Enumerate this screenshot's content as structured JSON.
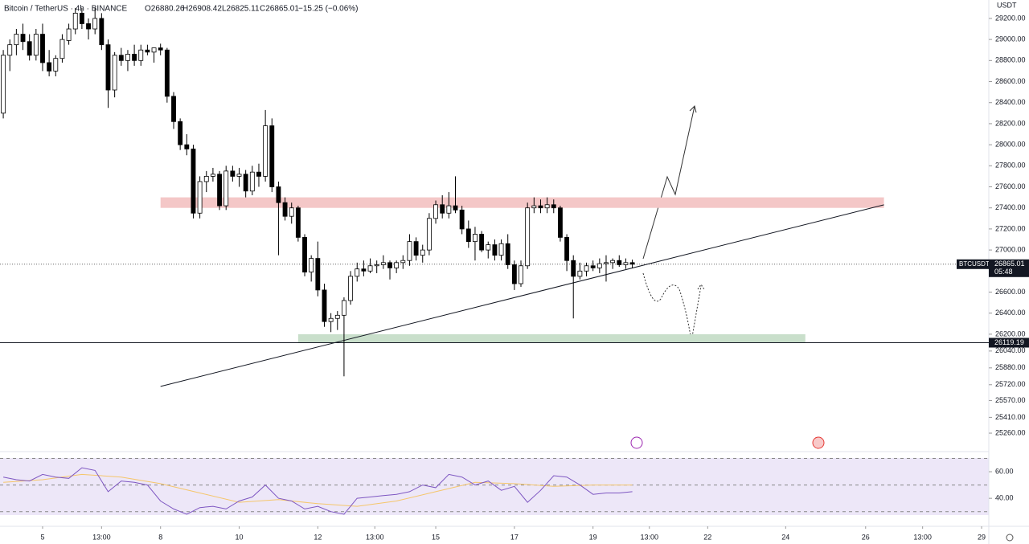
{
  "chart_data": {
    "type": "candlestick",
    "header": {
      "symbol": "Bitcoin / TetherUS · 4h · BINANCE",
      "open": "O26880.26",
      "high": "H26908.42",
      "low": "L26825.11",
      "close": "C26865.01",
      "change": "−15.25 (−0.06%)"
    },
    "currency": "USDT",
    "xlim": [
      -6.5,
      144.4
    ],
    "ylim": [
      25100,
      29375
    ],
    "xticks": [
      {
        "value": 0,
        "label": "5"
      },
      {
        "value": 9,
        "label": "13:00"
      },
      {
        "value": 18,
        "label": "8"
      },
      {
        "value": 30,
        "label": "10"
      },
      {
        "value": 42,
        "label": "12"
      },
      {
        "value": 50.7,
        "label": "13:00"
      },
      {
        "value": 60,
        "label": "15"
      },
      {
        "value": 72,
        "label": "17"
      },
      {
        "value": 84,
        "label": "19"
      },
      {
        "value": 92.6,
        "label": "13:00"
      },
      {
        "value": 101.5,
        "label": "22"
      },
      {
        "value": 113.4,
        "label": "24"
      },
      {
        "value": 125.6,
        "label": "26"
      },
      {
        "value": 134.3,
        "label": "13:00"
      },
      {
        "value": 143.3,
        "label": "29"
      }
    ],
    "yticks": [
      {
        "value": 29200,
        "label": "29200.00"
      },
      {
        "value": 29000,
        "label": "29000.00"
      },
      {
        "value": 28800,
        "label": "28800.00"
      },
      {
        "value": 28600,
        "label": "28600.00"
      },
      {
        "value": 28400,
        "label": "28400.00"
      },
      {
        "value": 28200,
        "label": "28200.00"
      },
      {
        "value": 28000,
        "label": "28000.00"
      },
      {
        "value": 27800,
        "label": "27800.00"
      },
      {
        "value": 27600,
        "label": "27600.00"
      },
      {
        "value": 27400,
        "label": "27400.00"
      },
      {
        "value": 27200,
        "label": "27200.00"
      },
      {
        "value": 27000,
        "label": "27000.00"
      },
      {
        "value": 26600,
        "label": "26600.00"
      },
      {
        "value": 26400,
        "label": "26400.00"
      },
      {
        "value": 26200,
        "label": "26200.00"
      },
      {
        "value": 26040,
        "label": "26040.00"
      },
      {
        "value": 25880,
        "label": "25880.00"
      },
      {
        "value": 25720,
        "label": "25720.00"
      },
      {
        "value": 25570,
        "label": "25570.00"
      },
      {
        "value": 25410,
        "label": "25410.00"
      },
      {
        "value": 25260,
        "label": "25260.00"
      }
    ],
    "x": [
      -6,
      -5,
      -4,
      -3,
      -2,
      -1,
      0,
      1,
      2,
      3,
      4,
      5,
      6,
      7,
      8,
      9,
      10,
      11,
      12,
      13,
      14,
      15,
      16,
      17,
      18,
      19,
      20,
      21,
      22,
      23,
      24,
      25,
      26,
      27,
      28,
      29,
      30,
      31,
      32,
      33,
      34,
      35,
      36,
      37,
      38,
      39,
      40,
      41,
      42,
      43,
      44,
      45,
      46,
      47,
      48,
      49,
      50,
      51,
      52,
      53,
      54,
      55,
      56,
      57,
      58,
      59,
      60,
      61,
      62,
      63,
      64,
      65,
      66,
      67,
      68,
      69,
      70,
      71,
      72,
      73,
      74,
      75,
      76,
      77,
      78,
      79,
      80,
      81,
      82,
      83,
      84,
      85,
      86,
      87,
      88,
      89,
      90
    ],
    "ohlc": [
      [
        28300,
        28900,
        28250,
        28850
      ],
      [
        28850,
        29000,
        28700,
        28950
      ],
      [
        28950,
        29100,
        28850,
        29050
      ],
      [
        29050,
        29150,
        28900,
        28980
      ],
      [
        28980,
        29050,
        28800,
        28850
      ],
      [
        28850,
        29100,
        28800,
        29050
      ],
      [
        29050,
        29150,
        28700,
        28780
      ],
      [
        28780,
        28900,
        28650,
        28700
      ],
      [
        28700,
        28850,
        28650,
        28820
      ],
      [
        28820,
        29050,
        28780,
        29000
      ],
      [
        28990,
        29150,
        28950,
        29100
      ],
      [
        29100,
        29300,
        29050,
        29250
      ],
      [
        29250,
        29300,
        29100,
        29150
      ],
      [
        29150,
        29200,
        29000,
        29100
      ],
      [
        29100,
        29300,
        29050,
        29200
      ],
      [
        29200,
        29250,
        28900,
        28950
      ],
      [
        28950,
        29000,
        28350,
        28520
      ],
      [
        28520,
        28880,
        28450,
        28850
      ],
      [
        28850,
        28920,
        28750,
        28800
      ],
      [
        28800,
        28900,
        28700,
        28860
      ],
      [
        28860,
        28950,
        28750,
        28800
      ],
      [
        28800,
        28950,
        28750,
        28900
      ],
      [
        28900,
        28950,
        28850,
        28880
      ],
      [
        28880,
        28920,
        28780,
        28920
      ],
      [
        28920,
        28960,
        28850,
        28900
      ],
      [
        28900,
        28920,
        28400,
        28460
      ],
      [
        28460,
        28500,
        28150,
        28220
      ],
      [
        28220,
        28250,
        27950,
        28000
      ],
      [
        28000,
        28100,
        27900,
        27960
      ],
      [
        27960,
        28000,
        27300,
        27350
      ],
      [
        27350,
        27700,
        27300,
        27650
      ],
      [
        27650,
        27750,
        27550,
        27700
      ],
      [
        27700,
        27780,
        27650,
        27720
      ],
      [
        27720,
        27750,
        27380,
        27420
      ],
      [
        27420,
        27800,
        27380,
        27750
      ],
      [
        27750,
        27800,
        27650,
        27700
      ],
      [
        27700,
        27780,
        27600,
        27720
      ],
      [
        27720,
        27760,
        27500,
        27560
      ],
      [
        27560,
        27800,
        27520,
        27740
      ],
      [
        27740,
        27820,
        27600,
        27700
      ],
      [
        27700,
        28330,
        27650,
        28180
      ],
      [
        28180,
        28250,
        27550,
        27600
      ],
      [
        27600,
        27650,
        26950,
        27450
      ],
      [
        27450,
        27500,
        27280,
        27320
      ],
      [
        27320,
        27450,
        27250,
        27400
      ],
      [
        27400,
        27420,
        27080,
        27120
      ],
      [
        27120,
        27150,
        26750,
        26790
      ],
      [
        26790,
        26950,
        26700,
        26920
      ],
      [
        26920,
        27080,
        26560,
        26620
      ],
      [
        26620,
        26680,
        26270,
        26320
      ],
      [
        26320,
        26400,
        26220,
        26350
      ],
      [
        26350,
        26420,
        26240,
        26380
      ],
      [
        26380,
        26550,
        25800,
        26520
      ],
      [
        26520,
        26800,
        26480,
        26750
      ],
      [
        26750,
        26880,
        26700,
        26820
      ],
      [
        26820,
        26900,
        26750,
        26800
      ],
      [
        26800,
        26920,
        26780,
        26850
      ],
      [
        26850,
        26900,
        26780,
        26860
      ],
      [
        26860,
        26950,
        26820,
        26880
      ],
      [
        26880,
        26900,
        26720,
        26830
      ],
      [
        26830,
        26900,
        26780,
        26880
      ],
      [
        26880,
        26950,
        26820,
        26900
      ],
      [
        26900,
        27150,
        26850,
        27080
      ],
      [
        27080,
        27120,
        26900,
        26950
      ],
      [
        26950,
        27050,
        26880,
        27000
      ],
      [
        27000,
        27350,
        26950,
        27300
      ],
      [
        27300,
        27470,
        27250,
        27430
      ],
      [
        27430,
        27520,
        27300,
        27350
      ],
      [
        27350,
        27550,
        27300,
        27420
      ],
      [
        27420,
        27700,
        27350,
        27380
      ],
      [
        27380,
        27420,
        27150,
        27200
      ],
      [
        27200,
        27280,
        27020,
        27080
      ],
      [
        27080,
        27220,
        26900,
        27150
      ],
      [
        27150,
        27180,
        26980,
        27000
      ],
      [
        27000,
        27080,
        26920,
        27050
      ],
      [
        27050,
        27100,
        26900,
        26950
      ],
      [
        26950,
        27100,
        26900,
        27060
      ],
      [
        27060,
        27150,
        26820,
        26860
      ],
      [
        26860,
        26900,
        26620,
        26680
      ],
      [
        26680,
        26900,
        26650,
        26850
      ],
      [
        26850,
        27450,
        26820,
        27400
      ],
      [
        27400,
        27500,
        27350,
        27420
      ],
      [
        27420,
        27480,
        27350,
        27400
      ],
      [
        27400,
        27500,
        27350,
        27430
      ],
      [
        27430,
        27480,
        27350,
        27400
      ],
      [
        27400,
        27420,
        27080,
        27120
      ],
      [
        27120,
        27150,
        26800,
        26900
      ],
      [
        26900,
        26950,
        26350,
        26750
      ],
      [
        26750,
        26880,
        26720,
        26800
      ],
      [
        26800,
        26880,
        26750,
        26850
      ],
      [
        26850,
        26900,
        26800,
        26830
      ],
      [
        26830,
        26920,
        26780,
        26870
      ],
      [
        26870,
        26950,
        26700,
        26880
      ],
      [
        26880,
        26920,
        26820,
        26900
      ],
      [
        26900,
        26950,
        26840,
        26860
      ],
      [
        26860,
        26920,
        26820,
        26880
      ],
      [
        26880,
        26908.42,
        26825.11,
        26865.01
      ]
    ],
    "up_color": "#ffffff",
    "down_color": "#000000",
    "zones": [
      {
        "x": [
          18,
          128.4
        ],
        "price": [
          27400,
          27500
        ],
        "color": "#f4c7c7"
      },
      {
        "x": [
          39,
          116.4
        ],
        "price": [
          26120,
          26200
        ],
        "color": "#c9dfcb"
      }
    ],
    "trendline": {
      "x": [
        18,
        128.4
      ],
      "price": [
        25704,
        27429
      ]
    },
    "support": {
      "value": 26119.19,
      "label": "26119.19"
    },
    "last_price": {
      "symbol": "BTCUSDT",
      "value": 26865.01,
      "label": "26865.01",
      "countdown": "05:48"
    },
    "rsi": {
      "ylim": [
        27.4,
        70.3
      ],
      "yticks": [
        {
          "value": 60,
          "label": "60.00"
        },
        {
          "value": 40,
          "label": "40.00"
        }
      ],
      "levels": [
        70,
        50,
        30
      ],
      "x": [
        -6,
        -4,
        -2,
        0,
        2,
        4,
        6,
        8,
        10,
        12,
        14,
        16,
        18,
        20,
        22,
        24,
        26,
        28,
        30,
        32,
        34,
        36,
        38,
        40,
        42,
        44,
        46,
        48,
        50,
        52,
        54,
        56,
        58,
        60,
        62,
        64,
        66,
        68,
        70,
        72,
        74,
        76,
        78,
        80,
        82,
        84,
        86,
        88,
        90
      ],
      "values": [
        56,
        54,
        53,
        58,
        56,
        55,
        63,
        61,
        45,
        53,
        52,
        50,
        38,
        32,
        28,
        33,
        34,
        32,
        38,
        41,
        50,
        40,
        38,
        32,
        34,
        30,
        28,
        40,
        41,
        42,
        43,
        45,
        50,
        48,
        58,
        56,
        50,
        53,
        46,
        49,
        37,
        46,
        57,
        56,
        50,
        43,
        44,
        44,
        45
      ],
      "color": "#7e57c2",
      "ma_x": [
        -6,
        0,
        6,
        12,
        18,
        24,
        30,
        36,
        42,
        48,
        54,
        60,
        66,
        72,
        78,
        84,
        90
      ],
      "ma_values": [
        52,
        54,
        58,
        56,
        51,
        44,
        37,
        39,
        36,
        34,
        38,
        45,
        52,
        51,
        49,
        50,
        50
      ],
      "ma_color": "#f5c66b"
    }
  }
}
